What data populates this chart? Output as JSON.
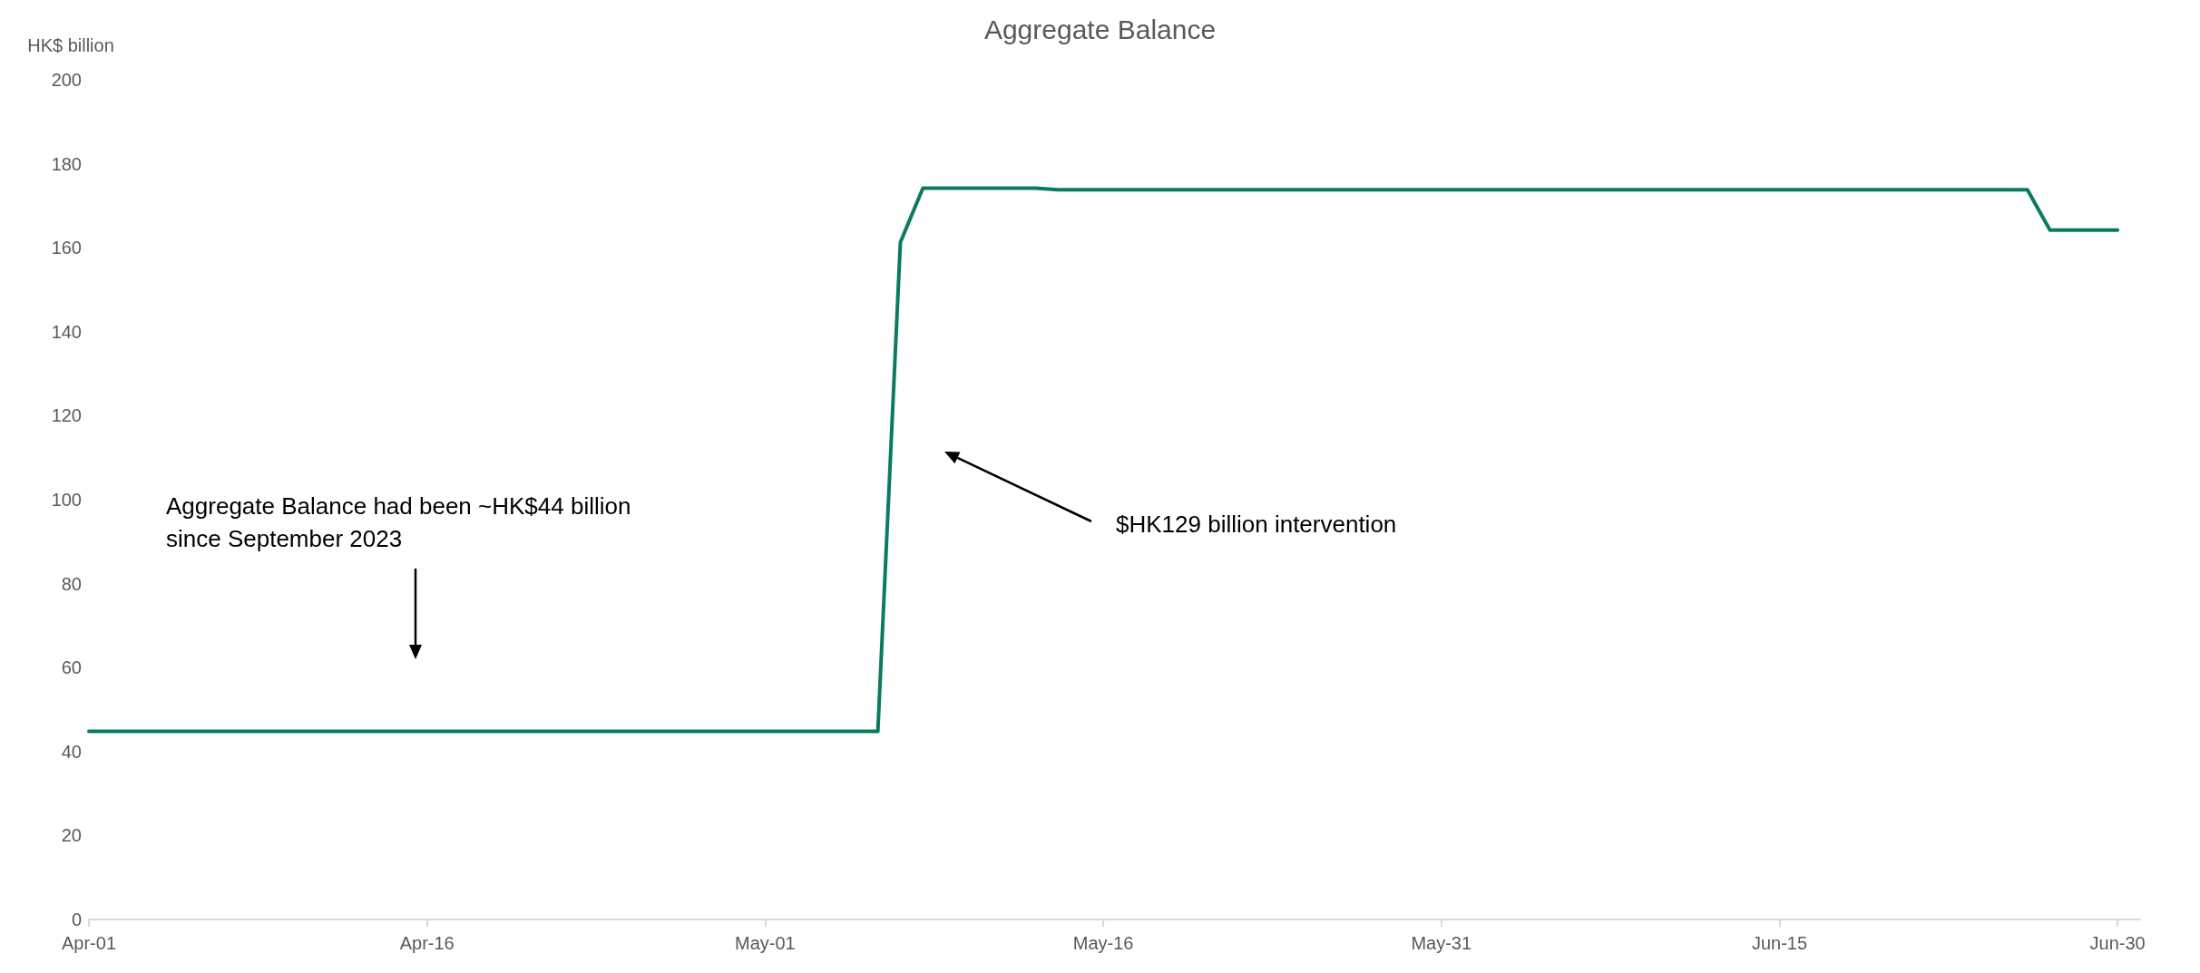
{
  "chart_data": {
    "type": "line",
    "title": "Aggregate Balance",
    "ylabel": "HK$ billion",
    "x": [
      "--04-01",
      "--05-06",
      "--05-07",
      "--05-08",
      "--05-13",
      "--05-14",
      "--06-26",
      "--06-27",
      "--06-30"
    ],
    "series": [
      {
        "color": "#0b7a62",
        "values": [
          44.8,
          44.8,
          161.3,
          174.2,
          174.2,
          173.8,
          173.8,
          164.2,
          164.2
        ]
      }
    ],
    "xlim": [
      "--04-01",
      "--07-01"
    ],
    "xticks": [
      {
        "value": "--04-01",
        "label": "Apr-01"
      },
      {
        "value": "--04-16",
        "label": "Apr-16"
      },
      {
        "value": "--05-01",
        "label": "May-01"
      },
      {
        "value": "--05-16",
        "label": "May-16"
      },
      {
        "value": "--05-31",
        "label": "May-31"
      },
      {
        "value": "--06-15",
        "label": "Jun-15"
      },
      {
        "value": "--06-30",
        "label": "Jun-30"
      }
    ],
    "ylim": [
      0,
      200
    ],
    "yticks": [
      0,
      20,
      40,
      60,
      80,
      100,
      120,
      140,
      160,
      180,
      200
    ],
    "grid": false,
    "marker": "none",
    "line_style": "solid",
    "annotations": [
      "Aggregate Balance had been ~HK$44 billion\nsince September 2023",
      "$HK129 billion intervention"
    ]
  }
}
